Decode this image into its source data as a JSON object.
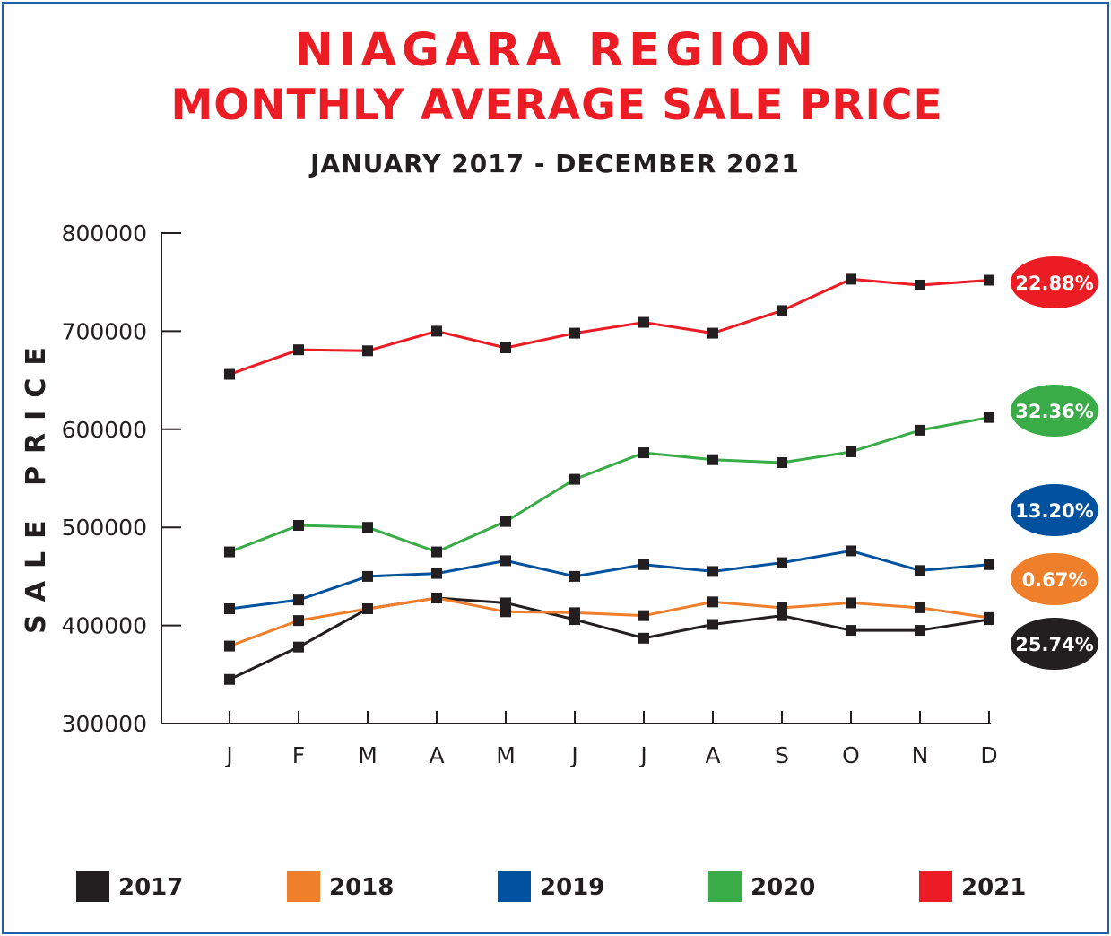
{
  "chart_data": {
    "type": "line",
    "title_line1": "NIAGARA REGION",
    "title_line2": "MONTHLY AVERAGE SALE PRICE",
    "subtitle": "JANUARY 2017 - DECEMBER 2021",
    "xlabel": "",
    "ylabel": "SALE PRICE",
    "ylim": [
      300000,
      800000
    ],
    "yticks": [
      800000,
      700000,
      600000,
      500000,
      400000,
      300000
    ],
    "categories": [
      "J",
      "F",
      "M",
      "A",
      "M",
      "J",
      "J",
      "A",
      "S",
      "O",
      "N",
      "D"
    ],
    "grid": false,
    "legend_position": "bottom",
    "series": [
      {
        "name": "2017",
        "color": "#231f20",
        "values": [
          345000,
          378000,
          417000,
          428000,
          423000,
          406000,
          387000,
          401000,
          410000,
          395000,
          395000,
          406000
        ],
        "change_label": "25.74%"
      },
      {
        "name": "2018",
        "color": "#f07f2c",
        "values": [
          379000,
          405000,
          417000,
          428000,
          414000,
          413000,
          410000,
          424000,
          418000,
          423000,
          418000,
          408000
        ],
        "change_label": "0.67%"
      },
      {
        "name": "2019",
        "color": "#00519e",
        "values": [
          417000,
          426000,
          450000,
          453000,
          466000,
          450000,
          462000,
          455000,
          464000,
          476000,
          456000,
          462000
        ],
        "change_label": "13.20%"
      },
      {
        "name": "2020",
        "color": "#39ac48",
        "values": [
          475000,
          502000,
          500000,
          475000,
          506000,
          549000,
          576000,
          569000,
          566000,
          577000,
          599000,
          612000
        ],
        "change_label": "32.36%"
      },
      {
        "name": "2021",
        "color": "#ec1c24",
        "values": [
          656000,
          681000,
          680000,
          700000,
          683000,
          698000,
          709000,
          698000,
          721000,
          753000,
          747000,
          752000
        ],
        "change_label": "22.88%"
      }
    ]
  },
  "colors": {
    "title": "#ec1c24",
    "text": "#231f20",
    "frame": "#1f5fa8",
    "axis": "#231f20",
    "marker": "#231f20"
  }
}
